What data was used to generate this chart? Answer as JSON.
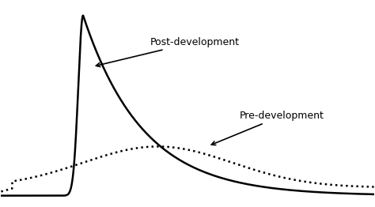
{
  "background_color": "#ffffff",
  "post_dev_color": "#000000",
  "pre_dev_color": "#000000",
  "post_dev_label": "Post-development",
  "pre_dev_label": "Pre-development",
  "figsize": [
    4.74,
    2.62
  ],
  "dpi": 100
}
